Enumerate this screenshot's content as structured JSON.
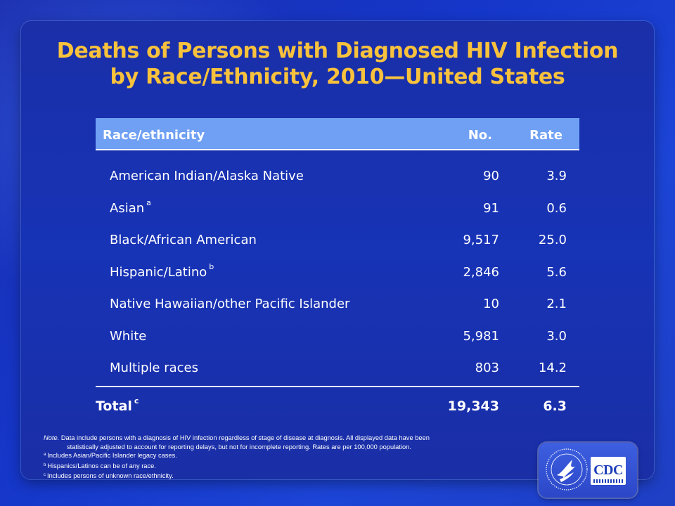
{
  "title": {
    "line1": "Deaths of Persons with Diagnosed HIV Infection",
    "line2": "by Race/Ethnicity, 2010—United States"
  },
  "table": {
    "headers": {
      "race": "Race/ethnicity",
      "no": "No.",
      "rate": "Rate"
    },
    "rows": [
      {
        "name": "American Indian/Alaska Native",
        "sup": "",
        "no": "90",
        "rate": "3.9"
      },
      {
        "name": "Asian",
        "sup": "a",
        "no": "91",
        "rate": "0.6"
      },
      {
        "name": "Black/African American",
        "sup": "",
        "no": "9,517",
        "rate": "25.0"
      },
      {
        "name": "Hispanic/Latino",
        "sup": "b",
        "no": "2,846",
        "rate": "5.6"
      },
      {
        "name": "Native Hawaiian/other Pacific Islander",
        "sup": "",
        "no": "10",
        "rate": "2.1"
      },
      {
        "name": "White",
        "sup": "",
        "no": "5,981",
        "rate": "3.0"
      },
      {
        "name": "Multiple races",
        "sup": "",
        "no": "803",
        "rate": "14.2"
      }
    ],
    "total": {
      "name": "Total",
      "sup": "c",
      "no": "19,343",
      "rate": "6.3"
    }
  },
  "notes": {
    "note_label": "Note.",
    "note_line1": "Data include persons with a diagnosis of HIV infection regardless of stage of disease at diagnosis. All displayed data have been",
    "note_line2": "statistically adjusted to account for reporting delays, but not for incomplete reporting. Rates are per 100,000 population.",
    "footnotes": [
      {
        "mark": "a",
        "text": "Includes Asian/Pacific Islander legacy cases."
      },
      {
        "mark": "b",
        "text": "Hispanics/Latinos can be of any race."
      },
      {
        "mark": "c",
        "text": "Includes persons of unknown race/ethnicity."
      }
    ]
  },
  "logo": {
    "text": "CDC"
  }
}
